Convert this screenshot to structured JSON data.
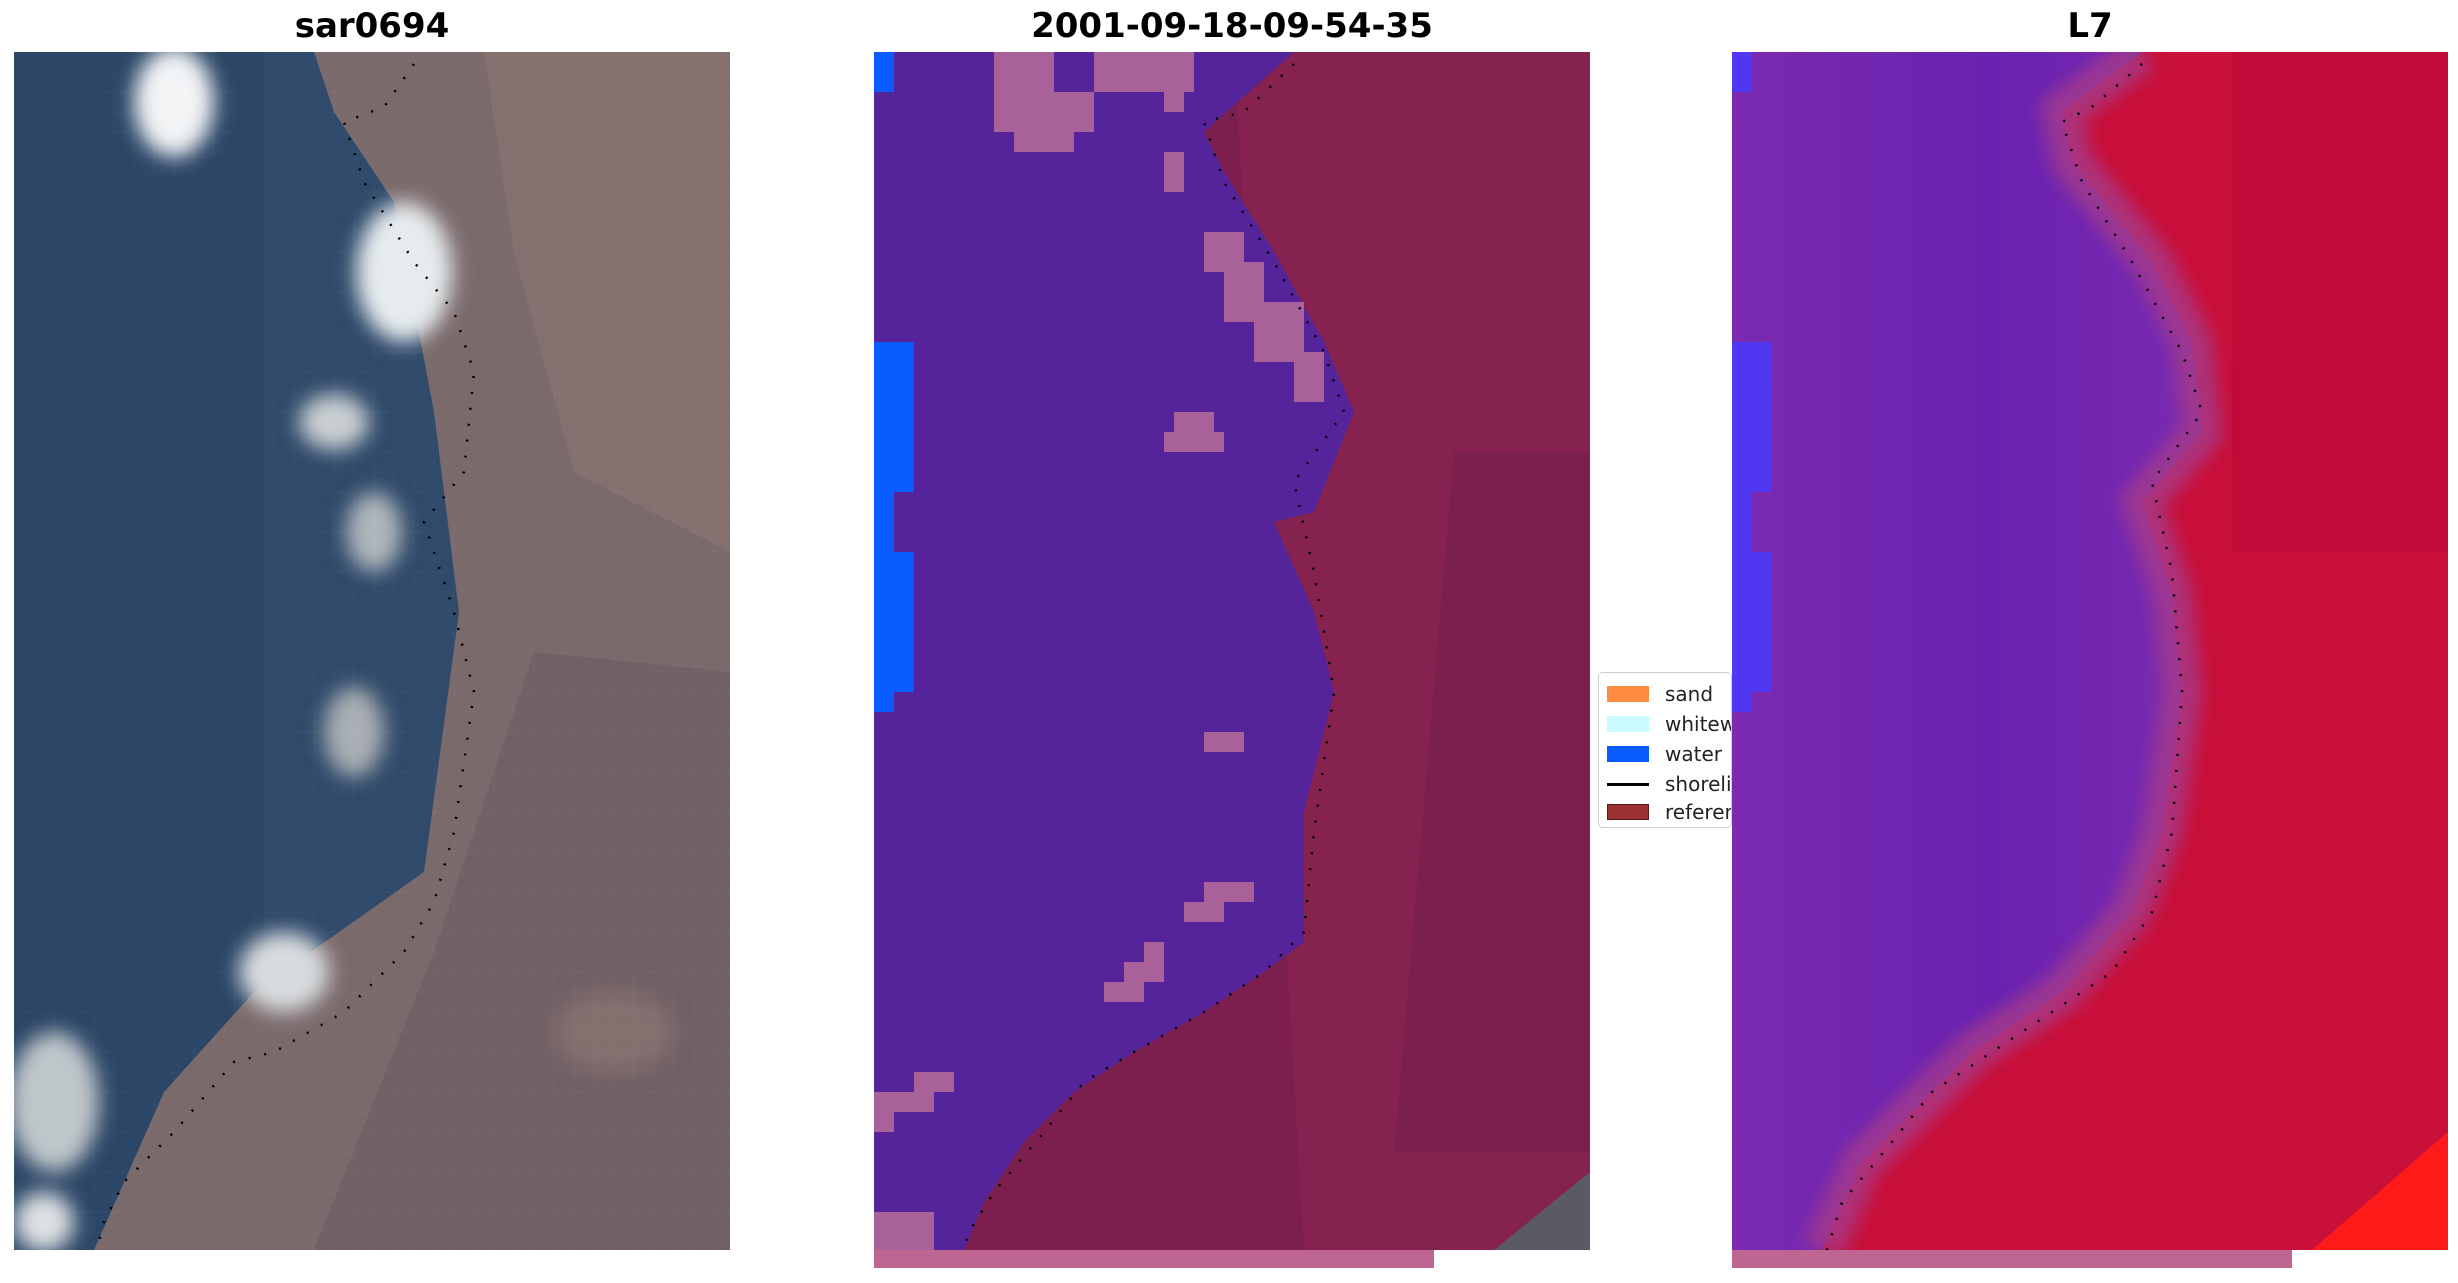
{
  "panels": [
    {
      "title": "sar0694",
      "description": "satellite RGB image"
    },
    {
      "title": "2001-09-18-09-54-35",
      "description": "classified image"
    },
    {
      "title": "L7",
      "description": "mndwi image"
    }
  ],
  "legend": {
    "items": [
      {
        "label": "sand",
        "color": "#ff8c40"
      },
      {
        "label": "whitewater",
        "color": "#c9fbff"
      },
      {
        "label": "water",
        "color": "#0a5cff"
      },
      {
        "label": "shoreline",
        "color": "#000000"
      },
      {
        "label": "reference",
        "color": "#9a3030"
      }
    ]
  },
  "colors": {
    "rgb_water": "#2e4a6b",
    "rgb_land": "#7b6b6e",
    "rgb_whitewater": "#e8eef2",
    "class_water_overlay": "#55249b",
    "class_land_overlay": "#7d1f4e",
    "class_pink_patches": "#a86199",
    "mndwi_water": "#7826b0",
    "mndwi_land": "#c8103a",
    "strip": "#bf6592"
  }
}
